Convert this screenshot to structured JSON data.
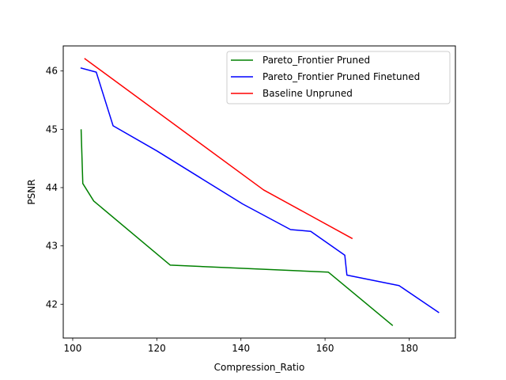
{
  "chart_data": {
    "type": "line",
    "title": "",
    "xlabel": "Compression_Ratio",
    "ylabel": "PSNR",
    "xlim": [
      97.75,
      191.0
    ],
    "ylim": [
      41.42,
      46.43
    ],
    "xticks": [
      100,
      120,
      140,
      160,
      180
    ],
    "yticks": [
      42,
      43,
      44,
      45,
      46
    ],
    "grid": false,
    "legend_position": "upper right",
    "series": [
      {
        "name": "Pareto_Frontier Pruned",
        "color": "#008000",
        "x": [
          102.0,
          102.4,
          105.0,
          123.2,
          160.8,
          176.0
        ],
        "y": [
          44.99,
          44.07,
          43.77,
          42.67,
          42.55,
          41.64
        ]
      },
      {
        "name": "Pareto_Frontier Pruned Finetuned",
        "color": "#0000ff",
        "x": [
          102.0,
          105.6,
          109.6,
          120.0,
          140.4,
          151.8,
          156.6,
          164.7,
          165.2,
          177.6,
          187.0
        ],
        "y": [
          46.05,
          45.98,
          45.06,
          44.63,
          43.72,
          43.28,
          43.25,
          42.84,
          42.5,
          42.32,
          41.86
        ]
      },
      {
        "name": "Baseline Unpruned",
        "color": "#ff0000",
        "x": [
          102.9,
          145.4,
          166.4
        ],
        "y": [
          46.21,
          43.96,
          43.13
        ]
      }
    ]
  }
}
